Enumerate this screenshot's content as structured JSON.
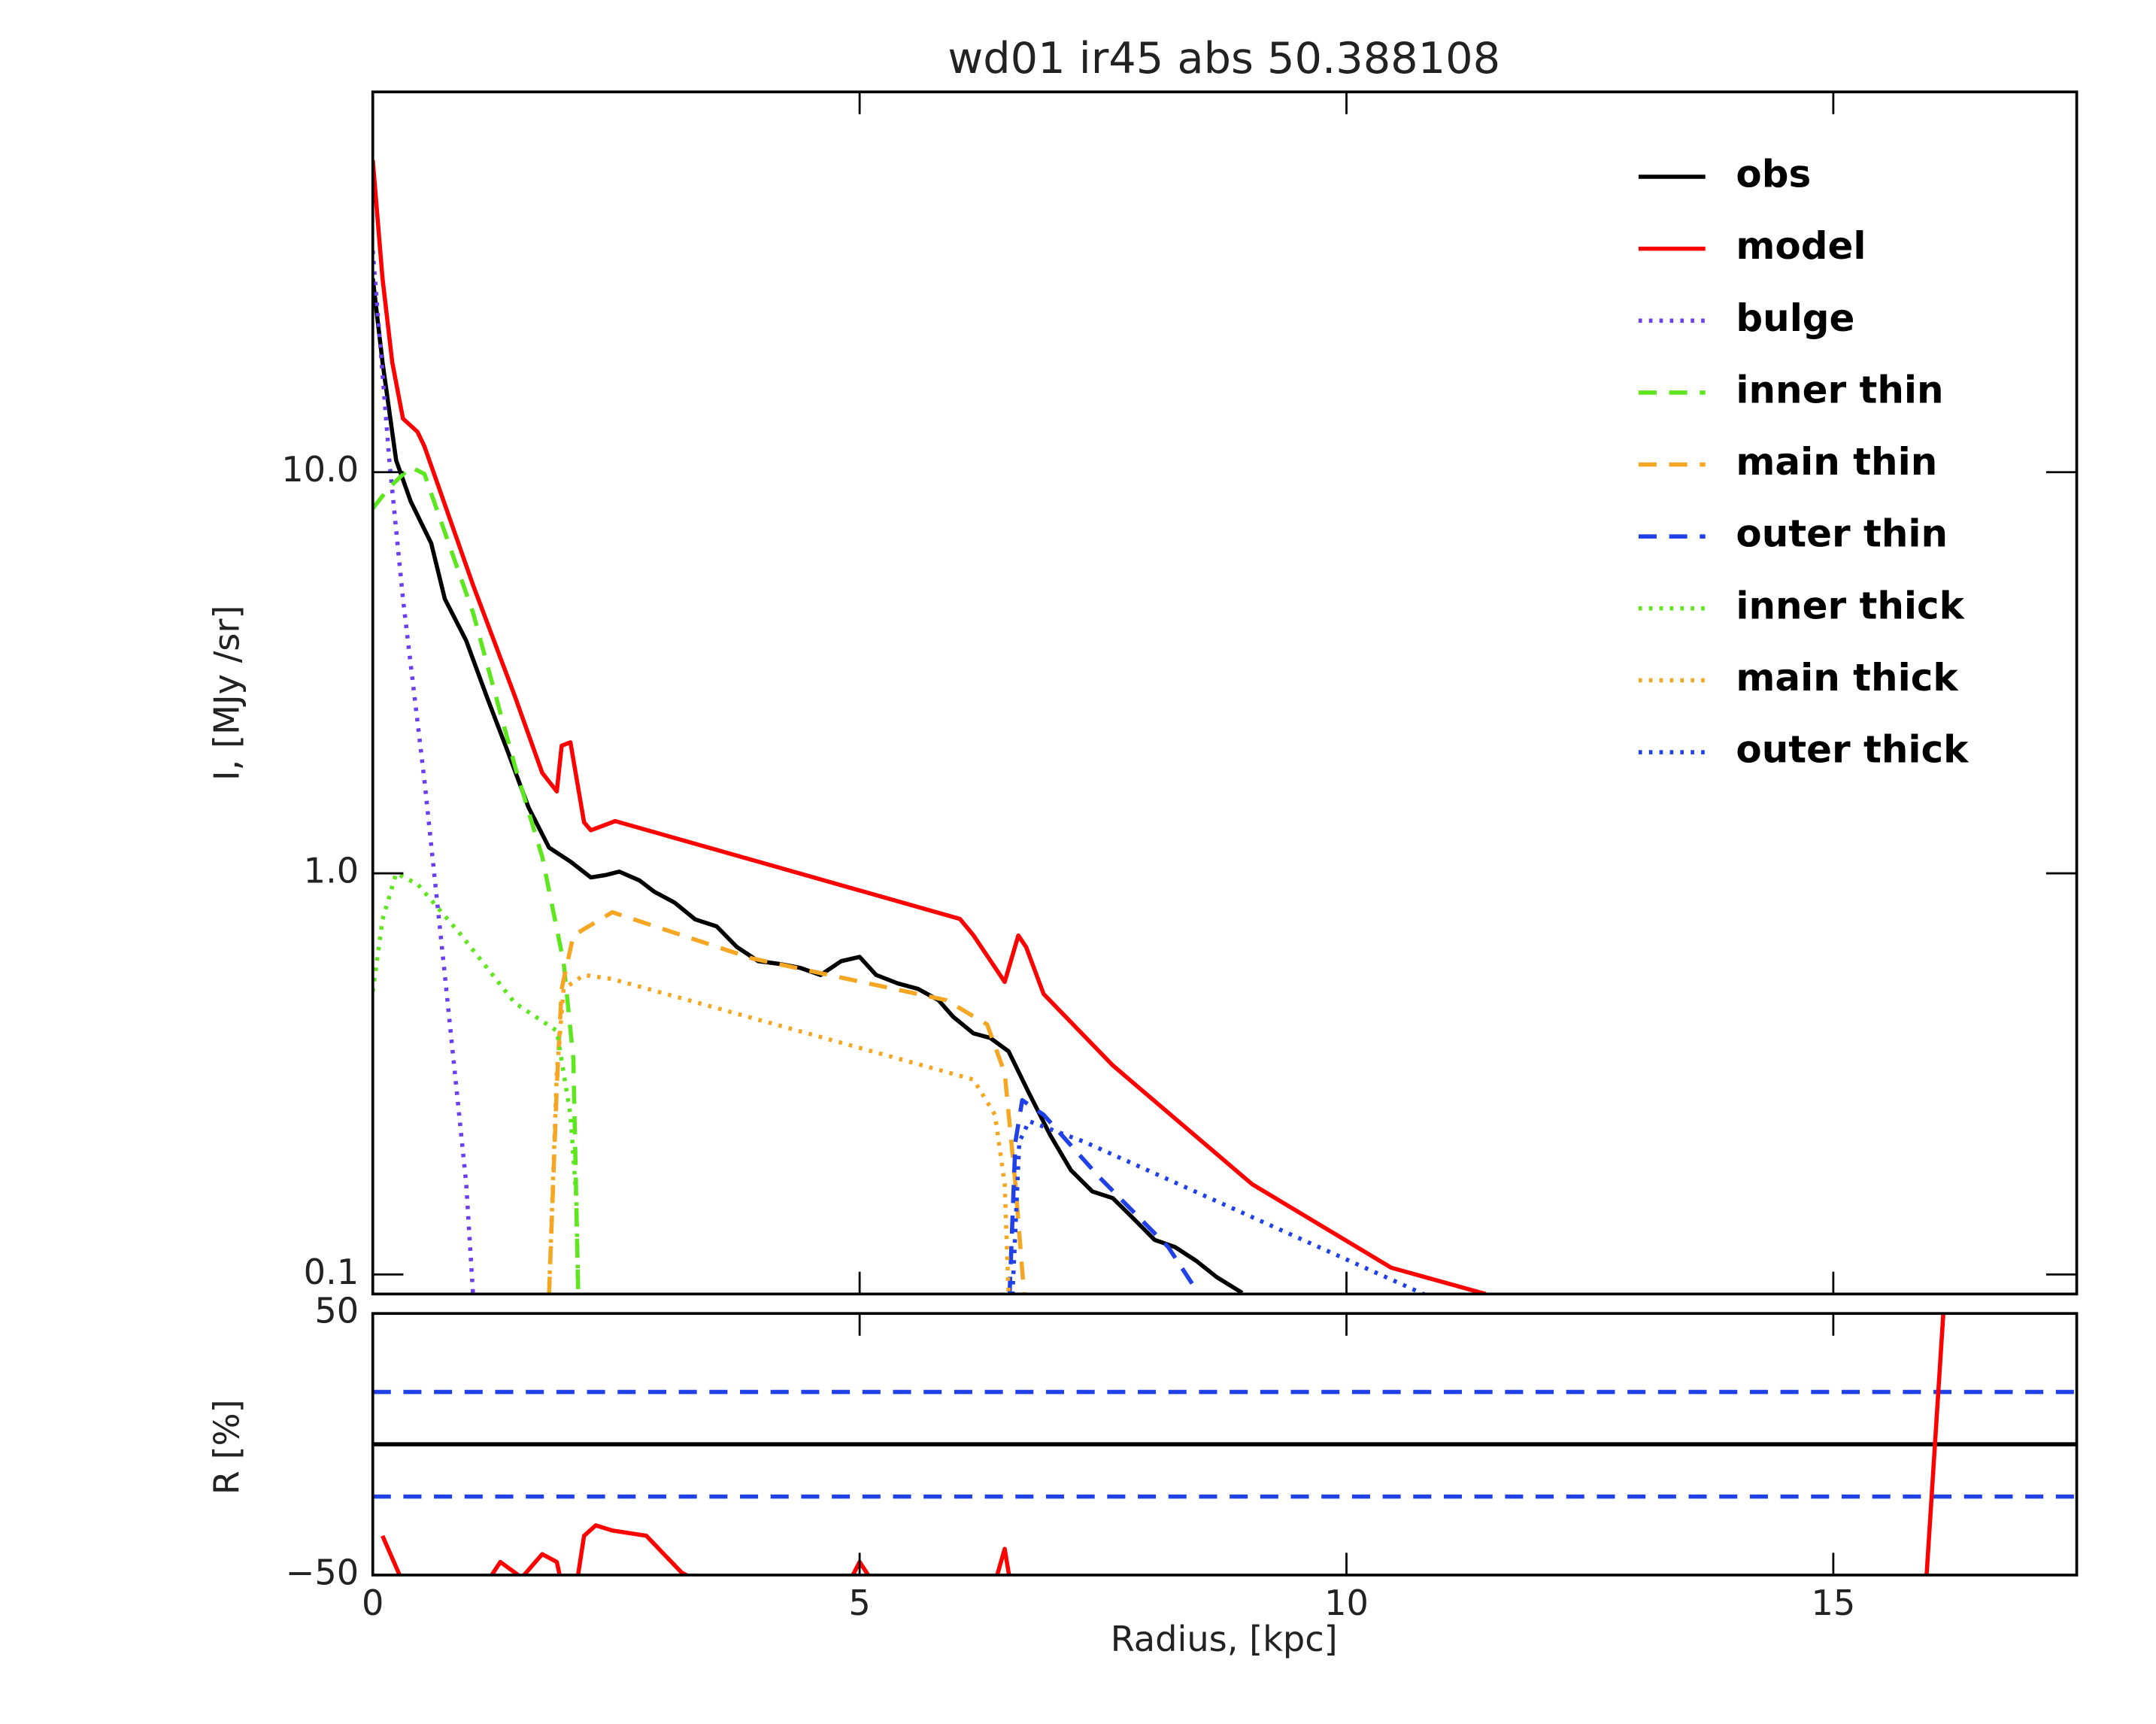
{
  "chart_data": [
    {
      "type": "line",
      "title": "wd01 ir45 abs 50.388108",
      "ylabel": "I, [MJy /sr]",
      "log": true,
      "xlim": [
        0,
        17.5
      ],
      "ylim": [
        0.0894,
        88.7
      ],
      "yticks": [
        0.1,
        {
          "value": 1,
          "label": "1.0"
        },
        {
          "value": 10,
          "label": "10.0"
        }
      ],
      "legend": "upper right",
      "series": [
        {
          "name": "obs",
          "color": "#000000",
          "linestyle": "solid",
          "x": [
            0,
            0.1,
            0.24,
            0.39,
            0.6,
            0.74,
            0.96,
            1.17,
            1.39,
            1.6,
            1.81,
            2.03,
            2.24,
            2.39,
            2.53,
            2.74,
            2.89,
            3.1,
            3.31,
            3.53,
            3.74,
            3.96,
            4.17,
            4.39,
            4.6,
            4.81,
            5.0,
            5.17,
            5.39,
            5.6,
            5.81,
            5.96,
            6.17,
            6.34,
            6.53,
            6.74,
            6.96,
            7.17,
            7.39,
            7.6,
            7.81,
            8.03,
            8.24,
            8.46,
            8.67,
            8.93
          ],
          "values": [
            30.4,
            18.8,
            10.7,
            8.45,
            6.65,
            4.83,
            3.8,
            2.76,
            2.0,
            1.46,
            1.16,
            1.07,
            0.977,
            0.99,
            1.01,
            0.96,
            0.9,
            0.845,
            0.768,
            0.738,
            0.655,
            0.604,
            0.595,
            0.581,
            0.558,
            0.604,
            0.619,
            0.558,
            0.532,
            0.515,
            0.483,
            0.439,
            0.399,
            0.389,
            0.36,
            0.283,
            0.222,
            0.182,
            0.161,
            0.155,
            0.138,
            0.122,
            0.117,
            0.108,
            0.0984,
            0.09
          ]
        },
        {
          "name": "model",
          "color": "#ff0000",
          "linestyle": "solid",
          "x": [
            0,
            0.1,
            0.2,
            0.31,
            0.46,
            0.53,
            0.63,
            1.03,
            1.46,
            1.74,
            1.89,
            1.94,
            2.03,
            2.17,
            2.24,
            2.49,
            6.03,
            6.17,
            6.49,
            6.63,
            6.71,
            6.89,
            7.6,
            9.03,
            10.46,
            11.43
          ],
          "values": [
            60,
            30.4,
            18.8,
            13.6,
            12.6,
            11.6,
            9.9,
            5.23,
            2.76,
            1.78,
            1.6,
            2.08,
            2.12,
            1.34,
            1.28,
            1.35,
            0.77,
            0.7,
            0.536,
            0.7,
            0.655,
            0.5,
            0.332,
            0.168,
            0.104,
            0.0894
          ]
        },
        {
          "name": "bulge",
          "color": "#6a3ff0",
          "linestyle": "dotted",
          "x": [
            0,
            0.17,
            0.31,
            0.53,
            0.74,
            0.96,
            1.03
          ],
          "values": [
            35.7,
            10.7,
            4.83,
            1.71,
            0.558,
            0.168,
            0.089
          ]
        },
        {
          "name": "inner thin",
          "color": "#5ee61e",
          "linestyle": "dashed",
          "x": [
            0,
            0.17,
            0.39,
            0.53,
            1.03,
            1.46,
            1.74,
            1.96,
            2.06,
            2.11
          ],
          "values": [
            8.12,
            9.16,
            10.3,
            9.9,
            4.46,
            1.85,
            1.1,
            0.6,
            0.345,
            0.089
          ]
        },
        {
          "name": "main thin",
          "color": "#f5a623",
          "linestyle": "dashed",
          "x": [
            1.81,
            1.89,
            1.94,
            2.06,
            2.46,
            3.89,
            5.89,
            6.31,
            6.49,
            6.6,
            6.69
          ],
          "values": [
            0.089,
            0.294,
            0.515,
            0.7,
            0.8,
            0.614,
            0.483,
            0.42,
            0.318,
            0.168,
            0.089
          ]
        },
        {
          "name": "outer thin",
          "color": "#2040e8",
          "linestyle": "dashed",
          "x": [
            6.54,
            6.6,
            6.67,
            6.89,
            7.46,
            8.17,
            8.49
          ],
          "values": [
            0.089,
            0.214,
            0.272,
            0.25,
            0.175,
            0.117,
            0.089
          ]
        },
        {
          "name": "inner thick",
          "color": "#5ee61e",
          "linestyle": "dotted",
          "x": [
            0,
            0.1,
            0.24,
            0.46,
            0.89,
            1.46,
            1.89,
            2.03,
            2.09,
            2.11
          ],
          "values": [
            0.507,
            0.767,
            1.0,
            0.94,
            0.71,
            0.475,
            0.405,
            0.25,
            0.155,
            0.089
          ]
        },
        {
          "name": "main thick",
          "color": "#f5a623",
          "linestyle": "dotted",
          "x": [
            1.81,
            1.89,
            1.96,
            2.17,
            2.46,
            6.17,
            6.39,
            6.49,
            6.53
          ],
          "values": [
            0.089,
            0.318,
            0.515,
            0.558,
            0.545,
            0.306,
            0.25,
            0.168,
            0.089
          ]
        },
        {
          "name": "outer thick",
          "color": "#2040e8",
          "linestyle": "dotted",
          "x": [
            6.57,
            6.64,
            6.74,
            7.31,
            10.81
          ],
          "values": [
            0.089,
            0.214,
            0.241,
            0.214,
            0.089
          ]
        }
      ]
    },
    {
      "type": "line",
      "xlabel": "Radius, [kpc]",
      "ylabel": "R [%]",
      "xlim": [
        0,
        17.5
      ],
      "ylim": [
        -50,
        50
      ],
      "xticks": [
        0,
        5,
        10,
        15
      ],
      "yticks": [
        {
          "value": -50,
          "label": "−50"
        },
        50
      ],
      "series": [
        {
          "color": "#000000",
          "linestyle": "solid",
          "x": [
            0,
            17.5
          ],
          "values": [
            0,
            0
          ]
        },
        {
          "color": "#2040e8",
          "linestyle": "dashed",
          "x": [
            0,
            17.5
          ],
          "values": [
            20,
            20
          ]
        },
        {
          "color": "#2040e8",
          "linestyle": "dashed",
          "x": [
            0,
            17.5
          ],
          "values": [
            -20,
            -20
          ]
        },
        {
          "color": "#ff0000",
          "linestyle": "solid",
          "x": [
            0.1,
            0.31,
            1.17,
            1.31,
            1.53,
            1.74,
            1.89,
            2.03,
            2.17,
            2.29,
            2.46,
            2.81,
            3.17,
            3.6,
            4.89,
            5.0,
            5.14,
            6.39,
            6.49,
            6.57,
            15.89,
            15.96,
            16.13
          ],
          "values": [
            -35,
            -53,
            -53,
            -45,
            -51,
            -42,
            -45,
            -69,
            -35,
            -31,
            -33,
            -35,
            -49,
            -58,
            -53,
            -45,
            -53,
            -53,
            -40,
            -58,
            -64,
            -49,
            50
          ]
        }
      ]
    }
  ]
}
